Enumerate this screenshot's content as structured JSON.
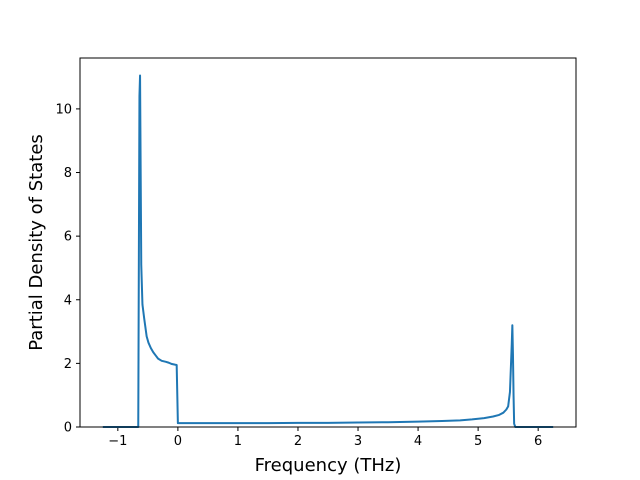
{
  "chart_data": {
    "type": "line",
    "title": "",
    "xlabel": "Frequency (THz)",
    "ylabel": "Partial Density of States",
    "xlim": [
      -1.63,
      6.63
    ],
    "ylim": [
      0,
      11.6
    ],
    "xticks": [
      -1,
      0,
      1,
      2,
      3,
      4,
      5,
      6
    ],
    "xtick_labels": [
      "−1",
      "0",
      "1",
      "2",
      "3",
      "4",
      "5",
      "6"
    ],
    "yticks": [
      0,
      2,
      4,
      6,
      8,
      10
    ],
    "ytick_labels": [
      "0",
      "2",
      "4",
      "6",
      "8",
      "10"
    ],
    "grid": false,
    "legend": false,
    "series": [
      {
        "color": "#1f77b4",
        "x": [
          -1.25,
          -0.68,
          -0.66,
          -0.64,
          -0.63,
          -0.61,
          -0.59,
          -0.56,
          -0.52,
          -0.49,
          -0.45,
          -0.41,
          -0.37,
          -0.33,
          -0.27,
          -0.2,
          -0.15,
          -0.1,
          -0.05,
          -0.02,
          0.0,
          0.5,
          1.0,
          1.5,
          2.0,
          2.5,
          3.0,
          3.5,
          4.0,
          4.4,
          4.7,
          4.9,
          5.1,
          5.25,
          5.35,
          5.42,
          5.47,
          5.5,
          5.53,
          5.56,
          5.57,
          5.58,
          5.59,
          5.6,
          5.62,
          6.25
        ],
        "y": [
          0,
          0,
          0,
          10.4,
          11.05,
          5.1,
          3.85,
          3.4,
          2.85,
          2.65,
          2.48,
          2.35,
          2.25,
          2.15,
          2.08,
          2.05,
          2.02,
          1.98,
          1.96,
          1.95,
          0.12,
          0.12,
          0.12,
          0.12,
          0.13,
          0.13,
          0.14,
          0.15,
          0.17,
          0.19,
          0.21,
          0.24,
          0.28,
          0.33,
          0.38,
          0.45,
          0.55,
          0.65,
          1.1,
          2.6,
          3.2,
          2.3,
          1.0,
          0.1,
          0,
          0
        ]
      }
    ]
  }
}
